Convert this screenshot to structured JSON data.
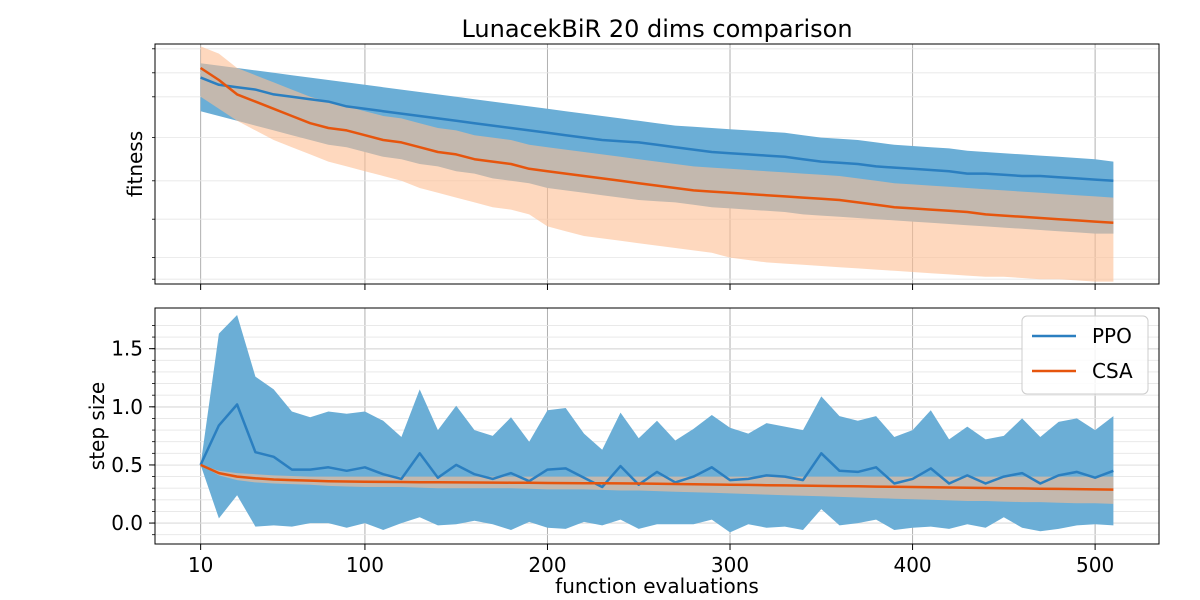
{
  "colors": {
    "ppo": "#2b7fc0",
    "ppo_band": "#6baed6",
    "csa": "#e6550d",
    "csa_band": "#fdbe93",
    "grid": "#b0b0b0"
  },
  "chart_data": [
    {
      "type": "line",
      "title": "LunacekBiR 20 dims comparison",
      "xlabel": "",
      "ylabel": "fitness",
      "xlim": [
        -15,
        535
      ],
      "ylim": [
        0,
        1
      ],
      "xticks": [
        10,
        100,
        200,
        300,
        400,
        500
      ],
      "yticks_labeled": false,
      "grid": true,
      "x": [
        10,
        20,
        30,
        40,
        50,
        60,
        70,
        80,
        90,
        100,
        110,
        120,
        130,
        140,
        150,
        160,
        170,
        180,
        190,
        200,
        210,
        220,
        230,
        240,
        250,
        260,
        270,
        280,
        290,
        300,
        310,
        320,
        330,
        340,
        350,
        360,
        370,
        380,
        390,
        400,
        410,
        420,
        430,
        440,
        450,
        460,
        470,
        480,
        490,
        500,
        510
      ],
      "series": [
        {
          "name": "PPO",
          "mean": [
            0.86,
            0.83,
            0.82,
            0.81,
            0.79,
            0.78,
            0.77,
            0.76,
            0.74,
            0.73,
            0.72,
            0.71,
            0.7,
            0.69,
            0.68,
            0.67,
            0.66,
            0.65,
            0.64,
            0.63,
            0.62,
            0.61,
            0.6,
            0.595,
            0.59,
            0.58,
            0.57,
            0.56,
            0.55,
            0.545,
            0.54,
            0.535,
            0.53,
            0.52,
            0.51,
            0.505,
            0.5,
            0.49,
            0.485,
            0.48,
            0.475,
            0.47,
            0.46,
            0.46,
            0.455,
            0.45,
            0.45,
            0.445,
            0.44,
            0.435,
            0.43
          ],
          "upper": [
            0.92,
            0.91,
            0.9,
            0.89,
            0.88,
            0.87,
            0.86,
            0.85,
            0.84,
            0.83,
            0.82,
            0.81,
            0.8,
            0.79,
            0.78,
            0.77,
            0.76,
            0.75,
            0.74,
            0.73,
            0.72,
            0.71,
            0.7,
            0.69,
            0.68,
            0.67,
            0.66,
            0.655,
            0.65,
            0.645,
            0.64,
            0.635,
            0.63,
            0.62,
            0.61,
            0.605,
            0.6,
            0.59,
            0.58,
            0.575,
            0.57,
            0.565,
            0.555,
            0.55,
            0.545,
            0.54,
            0.535,
            0.53,
            0.525,
            0.52,
            0.51
          ],
          "lower": [
            0.72,
            0.7,
            0.68,
            0.66,
            0.64,
            0.62,
            0.6,
            0.58,
            0.57,
            0.55,
            0.53,
            0.52,
            0.5,
            0.49,
            0.47,
            0.46,
            0.44,
            0.43,
            0.42,
            0.4,
            0.39,
            0.38,
            0.37,
            0.36,
            0.35,
            0.345,
            0.34,
            0.33,
            0.32,
            0.315,
            0.31,
            0.305,
            0.3,
            0.29,
            0.285,
            0.28,
            0.275,
            0.27,
            0.265,
            0.26,
            0.255,
            0.25,
            0.245,
            0.24,
            0.235,
            0.23,
            0.225,
            0.22,
            0.215,
            0.21,
            0.21
          ]
        },
        {
          "name": "CSA",
          "mean": [
            0.9,
            0.85,
            0.79,
            0.76,
            0.73,
            0.7,
            0.67,
            0.65,
            0.64,
            0.62,
            0.6,
            0.59,
            0.57,
            0.55,
            0.54,
            0.52,
            0.51,
            0.5,
            0.48,
            0.47,
            0.46,
            0.45,
            0.44,
            0.43,
            0.42,
            0.41,
            0.4,
            0.39,
            0.385,
            0.38,
            0.375,
            0.37,
            0.365,
            0.36,
            0.355,
            0.35,
            0.34,
            0.33,
            0.32,
            0.315,
            0.31,
            0.305,
            0.3,
            0.29,
            0.285,
            0.28,
            0.275,
            0.27,
            0.265,
            0.26,
            0.255
          ],
          "upper": [
            0.99,
            0.96,
            0.9,
            0.87,
            0.84,
            0.81,
            0.78,
            0.76,
            0.74,
            0.72,
            0.7,
            0.69,
            0.67,
            0.65,
            0.64,
            0.62,
            0.61,
            0.6,
            0.58,
            0.57,
            0.56,
            0.55,
            0.54,
            0.53,
            0.52,
            0.51,
            0.5,
            0.49,
            0.485,
            0.48,
            0.475,
            0.47,
            0.465,
            0.46,
            0.455,
            0.45,
            0.44,
            0.43,
            0.42,
            0.415,
            0.41,
            0.405,
            0.4,
            0.395,
            0.39,
            0.385,
            0.38,
            0.375,
            0.37,
            0.365,
            0.36
          ],
          "lower": [
            0.78,
            0.73,
            0.68,
            0.64,
            0.6,
            0.57,
            0.54,
            0.51,
            0.49,
            0.47,
            0.45,
            0.43,
            0.4,
            0.38,
            0.36,
            0.34,
            0.32,
            0.31,
            0.29,
            0.24,
            0.22,
            0.2,
            0.19,
            0.18,
            0.17,
            0.16,
            0.15,
            0.14,
            0.13,
            0.11,
            0.1,
            0.09,
            0.085,
            0.08,
            0.075,
            0.07,
            0.065,
            0.06,
            0.055,
            0.05,
            0.045,
            0.04,
            0.035,
            0.03,
            0.03,
            0.025,
            0.02,
            0.02,
            0.015,
            0.01,
            0.01
          ]
        }
      ]
    },
    {
      "type": "line",
      "title": "",
      "xlabel": "function evaluations",
      "ylabel": "step size",
      "xlim": [
        -15,
        535
      ],
      "ylim": [
        -0.18,
        1.85
      ],
      "xticks": [
        10,
        100,
        200,
        300,
        400,
        500
      ],
      "yticks": [
        0.0,
        0.5,
        1.0,
        1.5
      ],
      "ytick_labels": [
        "0.0",
        "0.5",
        "1.0",
        "1.5"
      ],
      "grid": true,
      "legend": "top-right",
      "x": [
        10,
        20,
        30,
        40,
        50,
        60,
        70,
        80,
        90,
        100,
        110,
        120,
        130,
        140,
        150,
        160,
        170,
        180,
        190,
        200,
        210,
        220,
        230,
        240,
        250,
        260,
        270,
        280,
        290,
        300,
        310,
        320,
        330,
        340,
        350,
        360,
        370,
        380,
        390,
        400,
        410,
        420,
        430,
        440,
        450,
        460,
        470,
        480,
        490,
        500,
        510
      ],
      "series": [
        {
          "name": "PPO",
          "mean": [
            0.5,
            0.84,
            1.02,
            0.61,
            0.57,
            0.46,
            0.46,
            0.48,
            0.45,
            0.48,
            0.42,
            0.38,
            0.6,
            0.39,
            0.5,
            0.42,
            0.38,
            0.43,
            0.36,
            0.46,
            0.47,
            0.39,
            0.31,
            0.49,
            0.33,
            0.44,
            0.35,
            0.4,
            0.48,
            0.37,
            0.38,
            0.41,
            0.4,
            0.37,
            0.6,
            0.45,
            0.44,
            0.48,
            0.34,
            0.38,
            0.47,
            0.34,
            0.41,
            0.34,
            0.4,
            0.43,
            0.34,
            0.41,
            0.44,
            0.39,
            0.45
          ],
          "upper": [
            0.5,
            1.63,
            1.79,
            1.26,
            1.15,
            0.96,
            0.91,
            0.96,
            0.94,
            0.96,
            0.88,
            0.74,
            1.15,
            0.8,
            1.01,
            0.8,
            0.75,
            0.91,
            0.7,
            0.97,
            0.99,
            0.77,
            0.63,
            0.95,
            0.73,
            0.88,
            0.71,
            0.81,
            0.93,
            0.82,
            0.77,
            0.86,
            0.83,
            0.8,
            1.09,
            0.92,
            0.88,
            0.92,
            0.74,
            0.8,
            0.97,
            0.72,
            0.83,
            0.72,
            0.75,
            0.9,
            0.74,
            0.87,
            0.9,
            0.8,
            0.92
          ],
          "lower": [
            0.5,
            0.04,
            0.24,
            -0.03,
            -0.02,
            -0.03,
            0.0,
            0.0,
            -0.04,
            0.0,
            -0.06,
            0.0,
            0.05,
            -0.02,
            -0.01,
            0.02,
            -0.01,
            -0.06,
            0.01,
            -0.04,
            -0.05,
            0.01,
            -0.02,
            0.03,
            -0.05,
            -0.01,
            -0.01,
            -0.01,
            0.03,
            -0.08,
            -0.01,
            -0.04,
            -0.03,
            -0.06,
            0.12,
            -0.02,
            0.0,
            0.03,
            -0.06,
            -0.04,
            -0.03,
            -0.05,
            -0.01,
            -0.04,
            0.05,
            -0.04,
            -0.07,
            -0.05,
            -0.02,
            -0.01,
            -0.02
          ]
        },
        {
          "name": "CSA",
          "mean": [
            0.5,
            0.43,
            0.4,
            0.385,
            0.375,
            0.37,
            0.365,
            0.36,
            0.358,
            0.355,
            0.354,
            0.353,
            0.352,
            0.351,
            0.35,
            0.349,
            0.348,
            0.347,
            0.346,
            0.345,
            0.344,
            0.343,
            0.342,
            0.341,
            0.34,
            0.338,
            0.336,
            0.334,
            0.332,
            0.33,
            0.328,
            0.326,
            0.324,
            0.322,
            0.32,
            0.318,
            0.316,
            0.314,
            0.312,
            0.31,
            0.308,
            0.306,
            0.304,
            0.302,
            0.3,
            0.298,
            0.296,
            0.294,
            0.292,
            0.29,
            0.288
          ],
          "upper": [
            0.5,
            0.45,
            0.43,
            0.42,
            0.41,
            0.405,
            0.4,
            0.4,
            0.4,
            0.4,
            0.4,
            0.4,
            0.4,
            0.4,
            0.4,
            0.4,
            0.4,
            0.4,
            0.4,
            0.4,
            0.4,
            0.4,
            0.4,
            0.4,
            0.4,
            0.4,
            0.4,
            0.4,
            0.4,
            0.4,
            0.4,
            0.4,
            0.4,
            0.4,
            0.4,
            0.4,
            0.4,
            0.4,
            0.4,
            0.4,
            0.4,
            0.4,
            0.4,
            0.4,
            0.4,
            0.4,
            0.4,
            0.4,
            0.4,
            0.4,
            0.4
          ],
          "lower": [
            0.5,
            0.41,
            0.37,
            0.35,
            0.34,
            0.335,
            0.33,
            0.32,
            0.315,
            0.31,
            0.31,
            0.31,
            0.305,
            0.3,
            0.3,
            0.3,
            0.3,
            0.3,
            0.295,
            0.29,
            0.29,
            0.29,
            0.285,
            0.28,
            0.28,
            0.275,
            0.27,
            0.265,
            0.26,
            0.255,
            0.25,
            0.245,
            0.24,
            0.235,
            0.23,
            0.225,
            0.22,
            0.215,
            0.21,
            0.205,
            0.2,
            0.195,
            0.19,
            0.19,
            0.185,
            0.18,
            0.18,
            0.175,
            0.17,
            0.17,
            0.165
          ]
        }
      ]
    }
  ]
}
